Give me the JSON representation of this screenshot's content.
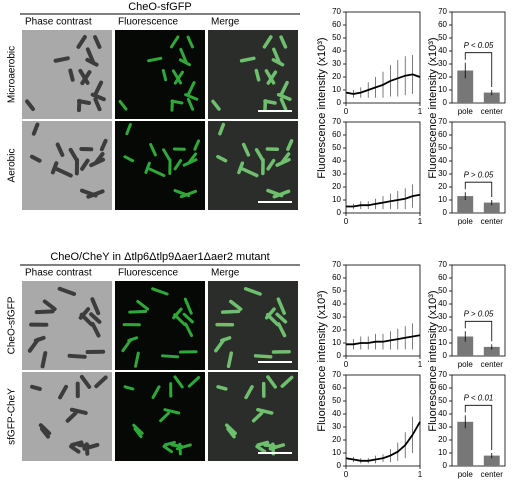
{
  "panels": [
    {
      "title": "CheO-sfGFP",
      "columns": [
        "Phase contrast",
        "Fluorescence",
        "Merge"
      ],
      "rows": [
        "Microaerobic",
        "Aerobic"
      ]
    },
    {
      "title": "CheO/CheY in Δtlp6Δtlp9Δaer1Δaer2 mutant",
      "columns": [
        "Phase contrast",
        "Fluorescence",
        "Merge"
      ],
      "rows": [
        "CheO-sfGFP",
        "sfGFP-CheY"
      ]
    }
  ],
  "chart_data": [
    {
      "type": "line",
      "ylabel": "Fluorescence intensity (x10³)",
      "x": [
        0,
        0.1,
        0.2,
        0.3,
        0.4,
        0.5,
        0.6,
        0.7,
        0.8,
        0.9,
        1
      ],
      "xlim": [
        0,
        1
      ],
      "xticks": [
        0,
        1
      ],
      "ylim": [
        0,
        70
      ],
      "yticks": [
        0,
        10,
        20,
        30,
        40,
        50,
        60,
        70
      ],
      "series": [
        {
          "color": "#000000",
          "values": [
            8,
            7,
            8,
            10,
            12,
            14,
            17,
            19,
            21,
            22,
            20
          ],
          "errors": [
            3,
            3,
            4,
            6,
            8,
            10,
            12,
            14,
            15,
            15,
            12
          ]
        }
      ]
    },
    {
      "type": "bar",
      "ylabel": "Fluorescence intensity (x10³)",
      "categories": [
        "pole",
        "center"
      ],
      "values": [
        25,
        8
      ],
      "errors": [
        6,
        2
      ],
      "color": "#777777",
      "ylim": [
        0,
        70
      ],
      "yticks": [
        0,
        10,
        20,
        30,
        40,
        50,
        60,
        70
      ],
      "annotation": "P < 0.05"
    },
    {
      "type": "line",
      "x": [
        0,
        0.1,
        0.2,
        0.3,
        0.4,
        0.5,
        0.6,
        0.7,
        0.8,
        0.9,
        1
      ],
      "xlim": [
        0,
        1
      ],
      "xticks": [
        0,
        1
      ],
      "ylim": [
        0,
        70
      ],
      "yticks": [
        0,
        10,
        20,
        30,
        40,
        50,
        60,
        70
      ],
      "series": [
        {
          "color": "#000000",
          "values": [
            5,
            5,
            6,
            6,
            7,
            8,
            9,
            10,
            11,
            13,
            14
          ],
          "errors": [
            2,
            2,
            3,
            3,
            4,
            5,
            6,
            7,
            8,
            9,
            9
          ]
        }
      ]
    },
    {
      "type": "bar",
      "categories": [
        "pole",
        "center"
      ],
      "values": [
        13,
        8
      ],
      "errors": [
        3,
        2
      ],
      "color": "#777777",
      "ylim": [
        0,
        70
      ],
      "yticks": [
        0,
        10,
        20,
        30,
        40,
        50,
        60,
        70
      ],
      "annotation": "P > 0.05"
    },
    {
      "type": "line",
      "ylabel": "Fluorescence intensity (x10³)",
      "x": [
        0,
        0.1,
        0.2,
        0.3,
        0.4,
        0.5,
        0.6,
        0.7,
        0.8,
        0.9,
        1
      ],
      "xlim": [
        0,
        1
      ],
      "xticks": [
        0,
        1
      ],
      "ylim": [
        0,
        70
      ],
      "yticks": [
        0,
        10,
        20,
        30,
        40,
        50,
        60,
        70
      ],
      "series": [
        {
          "color": "#000000",
          "values": [
            9,
            9,
            10,
            10,
            11,
            11,
            12,
            13,
            14,
            15,
            16
          ],
          "errors": [
            4,
            4,
            5,
            5,
            6,
            6,
            7,
            8,
            9,
            10,
            10
          ]
        }
      ]
    },
    {
      "type": "bar",
      "ylabel": "Fluorescence intensity (x10³)",
      "categories": [
        "pole",
        "center"
      ],
      "values": [
        15,
        7
      ],
      "errors": [
        4,
        2
      ],
      "color": "#777777",
      "ylim": [
        0,
        70
      ],
      "yticks": [
        0,
        10,
        20,
        30,
        40,
        50,
        60,
        70
      ],
      "annotation": "P > 0.05"
    },
    {
      "type": "line",
      "x": [
        0,
        0.1,
        0.2,
        0.3,
        0.4,
        0.5,
        0.6,
        0.7,
        0.8,
        0.9,
        1
      ],
      "xlim": [
        0,
        1
      ],
      "xticks": [
        0,
        1
      ],
      "ylim": [
        0,
        70
      ],
      "yticks": [
        0,
        10,
        20,
        30,
        40,
        50,
        60,
        70
      ],
      "series": [
        {
          "color": "#000000",
          "values": [
            6,
            5,
            4,
            4,
            5,
            6,
            8,
            11,
            16,
            24,
            34
          ],
          "errors": [
            3,
            2,
            2,
            2,
            3,
            3,
            5,
            7,
            10,
            14,
            20
          ]
        }
      ]
    },
    {
      "type": "bar",
      "categories": [
        "pole",
        "center"
      ],
      "values": [
        34,
        8
      ],
      "errors": [
        5,
        2
      ],
      "color": "#777777",
      "ylim": [
        0,
        70
      ],
      "yticks": [
        0,
        10,
        20,
        30,
        40,
        50,
        60,
        70
      ],
      "annotation": "P < 0.01"
    }
  ]
}
